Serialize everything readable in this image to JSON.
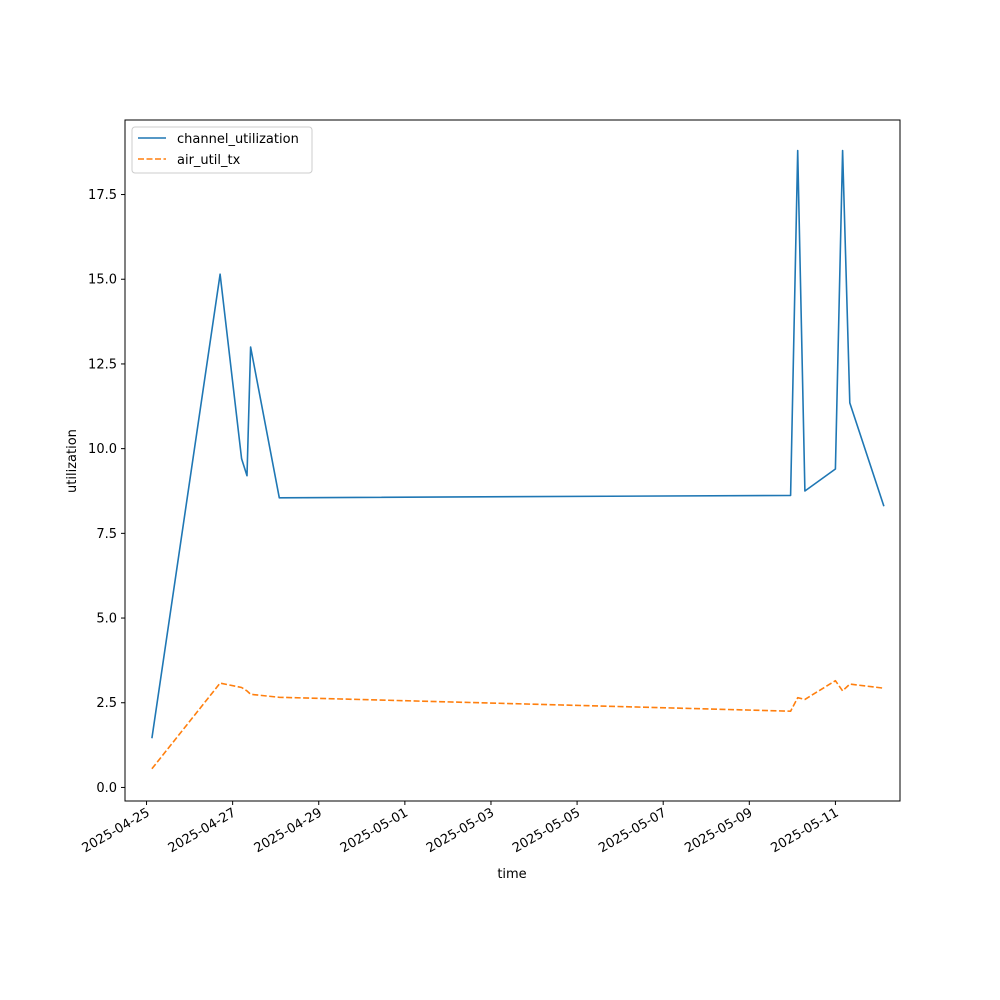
{
  "chart_data": {
    "type": "line",
    "xlabel": "time",
    "ylabel": "utilization",
    "x_ticks": [
      "2025-04-25",
      "2025-04-27",
      "2025-04-29",
      "2025-05-01",
      "2025-05-03",
      "2025-05-05",
      "2025-05-07",
      "2025-05-09",
      "2025-05-11"
    ],
    "y_ticks": [
      "0.0",
      "2.5",
      "5.0",
      "7.5",
      "10.0",
      "12.5",
      "15.0",
      "17.5"
    ],
    "xlim": [
      "2025-04-24 12:00",
      "2025-05-12 12:00"
    ],
    "ylim": [
      -0.4,
      19.7
    ],
    "grid": false,
    "legend": "top-left",
    "series": [
      {
        "name": "channel_utilization",
        "color": "#1f77b4",
        "style": "solid",
        "points": [
          [
            "2025-04-25 03:00",
            1.45
          ],
          [
            "2025-04-26 17:00",
            15.15
          ],
          [
            "2025-04-27 05:00",
            9.7
          ],
          [
            "2025-04-27 08:00",
            9.2
          ],
          [
            "2025-04-27 10:00",
            13.0
          ],
          [
            "2025-04-28 02:00",
            8.55
          ],
          [
            "2025-05-09 23:00",
            8.62
          ],
          [
            "2025-05-10 03:00",
            18.8
          ],
          [
            "2025-05-10 07:00",
            8.75
          ],
          [
            "2025-05-11 00:00",
            9.4
          ],
          [
            "2025-05-11 04:00",
            18.8
          ],
          [
            "2025-05-11 08:00",
            11.35
          ],
          [
            "2025-05-12 03:00",
            8.3
          ]
        ]
      },
      {
        "name": "air_util_tx",
        "color": "#ff7f0e",
        "style": "dashed",
        "points": [
          [
            "2025-04-25 03:00",
            0.55
          ],
          [
            "2025-04-26 17:00",
            3.08
          ],
          [
            "2025-04-27 05:00",
            2.95
          ],
          [
            "2025-04-27 08:00",
            2.85
          ],
          [
            "2025-04-27 10:00",
            2.75
          ],
          [
            "2025-04-28 02:00",
            2.66
          ],
          [
            "2025-05-09 23:00",
            2.25
          ],
          [
            "2025-05-10 03:00",
            2.65
          ],
          [
            "2025-05-10 07:00",
            2.6
          ],
          [
            "2025-05-11 00:00",
            3.15
          ],
          [
            "2025-05-11 04:00",
            2.85
          ],
          [
            "2025-05-11 08:00",
            3.05
          ],
          [
            "2025-05-12 03:00",
            2.93
          ]
        ]
      }
    ]
  }
}
